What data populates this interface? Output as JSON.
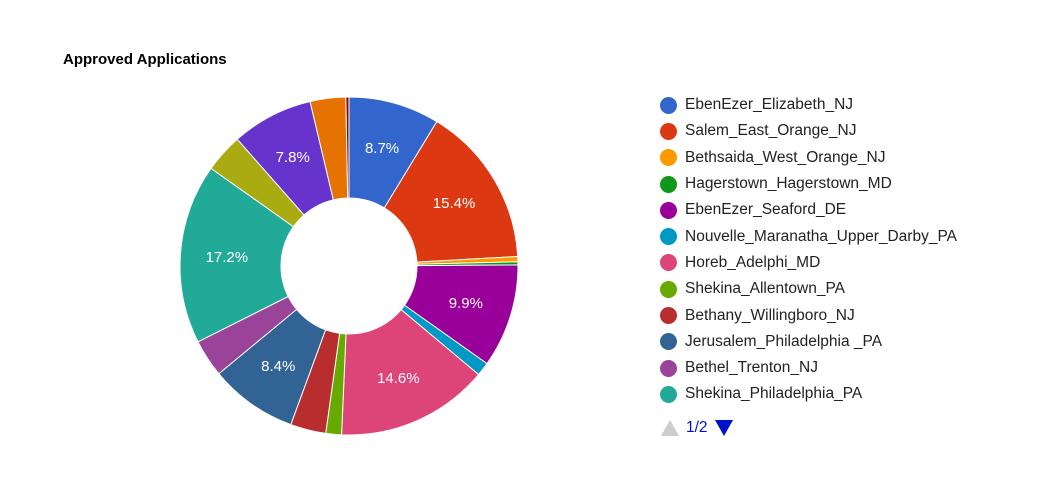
{
  "chart_data": {
    "type": "pie",
    "donut": true,
    "title": "Approved Applications",
    "slices": [
      {
        "name": "EbenEzer_Elizabeth_NJ",
        "percent": 8.7,
        "color": "#3366cc",
        "label": "8.7%"
      },
      {
        "name": "Salem_East_Orange_NJ",
        "percent": 15.4,
        "color": "#dc3912",
        "label": "15.4%"
      },
      {
        "name": "Bethsaida_West_Orange_NJ",
        "percent": 0.5,
        "color": "#ff9900",
        "label": ""
      },
      {
        "name": "Hagerstown_Hagerstown_MD",
        "percent": 0.3,
        "color": "#109618",
        "label": ""
      },
      {
        "name": "EbenEzer_Seaford_DE",
        "percent": 9.9,
        "color": "#990099",
        "label": "9.9%"
      },
      {
        "name": "Nouvelle_Maranatha_Upper_Darby_PA",
        "percent": 1.3,
        "color": "#0099c6",
        "label": ""
      },
      {
        "name": "Horeb_Adelphi_MD",
        "percent": 14.6,
        "color": "#dd4477",
        "label": "14.6%"
      },
      {
        "name": "Shekina_Allentown_PA",
        "percent": 1.5,
        "color": "#66aa00",
        "label": ""
      },
      {
        "name": "Bethany_Willingboro_NJ",
        "percent": 3.4,
        "color": "#b82e2e",
        "label": ""
      },
      {
        "name": "Jerusalem_Philadelphia _PA",
        "percent": 8.4,
        "color": "#316395",
        "label": "8.4%"
      },
      {
        "name": "Bethel_Trenton_NJ",
        "percent": 3.6,
        "color": "#994499",
        "label": ""
      },
      {
        "name": "Shekina_Philadelphia_PA",
        "percent": 17.2,
        "color": "#22aa99",
        "label": "17.2%"
      },
      {
        "name": "",
        "percent": 3.7,
        "color": "#aaaa11",
        "label": ""
      },
      {
        "name": "",
        "percent": 7.8,
        "color": "#6633cc",
        "label": "7.8%"
      },
      {
        "name": "",
        "percent": 3.4,
        "color": "#e67300",
        "label": ""
      },
      {
        "name": "",
        "percent": 0.3,
        "color": "#8b0707",
        "label": ""
      }
    ],
    "legend_position": "right",
    "legend_visible_count": 12
  },
  "legend_pager": {
    "text": "1/2",
    "prev_icon": "triangle-up-icon",
    "next_icon": "triangle-down-icon"
  }
}
